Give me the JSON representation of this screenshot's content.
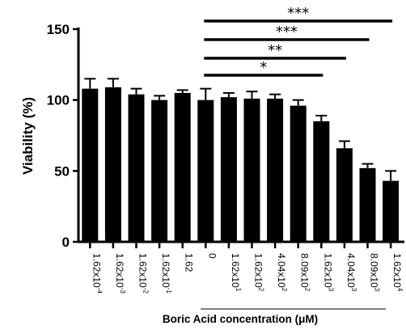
{
  "chart_data": {
    "type": "bar",
    "ylabel": "Viability (%)",
    "xlabel": "Boric Acid concentration (μM)",
    "ylim": [
      0,
      150
    ],
    "yticks": [
      0,
      50,
      100,
      150
    ],
    "categories": [
      {
        "base": "1.62x10",
        "exp": "-4"
      },
      {
        "base": "1.62x10",
        "exp": "-3"
      },
      {
        "base": "1.62x10",
        "exp": "-2"
      },
      {
        "base": "1.62x10",
        "exp": "-1"
      },
      {
        "base": "1.62",
        "exp": ""
      },
      {
        "base": "0",
        "exp": ""
      },
      {
        "base": "1.62x10",
        "exp": "1"
      },
      {
        "base": "1.62x10",
        "exp": "2"
      },
      {
        "base": "4.04x10",
        "exp": "2"
      },
      {
        "base": "8.09x10",
        "exp": "2"
      },
      {
        "base": "1.62x10",
        "exp": "3"
      },
      {
        "base": "4.04x10",
        "exp": "3"
      },
      {
        "base": "8.09x10",
        "exp": "3"
      },
      {
        "base": "1.62x10",
        "exp": "4"
      }
    ],
    "values": [
      108,
      109,
      104,
      100,
      105,
      100,
      102,
      101,
      101,
      96,
      85,
      66,
      52,
      43
    ],
    "errors": [
      7,
      6,
      4,
      3,
      2,
      8,
      3,
      5,
      3,
      4,
      4,
      5,
      3,
      7
    ],
    "group_bracket": {
      "from_index": 5,
      "to_index": 13
    },
    "significance": [
      {
        "from_index": 5,
        "to_index": 10,
        "stars": "*"
      },
      {
        "from_index": 5,
        "to_index": 11,
        "stars": "**"
      },
      {
        "from_index": 5,
        "to_index": 12,
        "stars": "***"
      },
      {
        "from_index": 5,
        "to_index": 13,
        "stars": "***"
      }
    ],
    "grid": false,
    "legend": "none"
  }
}
